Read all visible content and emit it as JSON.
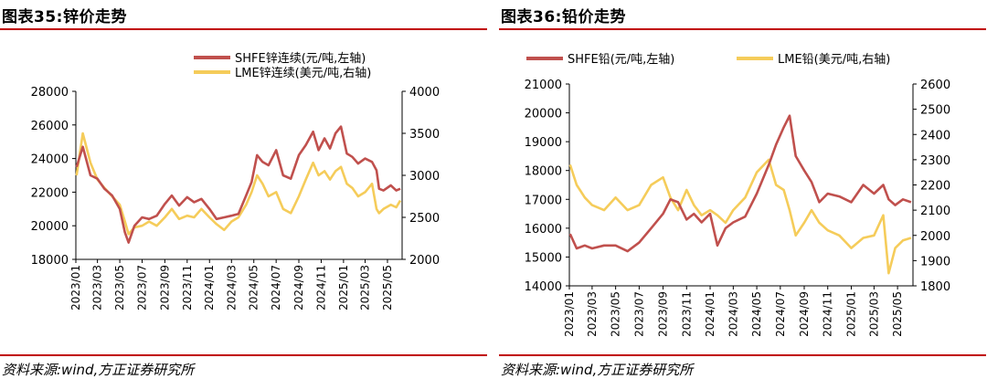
{
  "chart_data": [
    {
      "id": "zinc",
      "type": "line",
      "title": "图表35:锌价走势",
      "source": "资料来源:wind,方正证券研究所",
      "x_ticks": [
        "2023/01",
        "2023/03",
        "2023/05",
        "2023/07",
        "2023/09",
        "2023/11",
        "2024/01",
        "2024/03",
        "2024/05",
        "2024/07",
        "2024/09",
        "2024/11",
        "2025/01",
        "2025/03",
        "2025/05"
      ],
      "x_range": [
        "2023/01/01",
        "2025/06/10"
      ],
      "y_left": {
        "ticks": [
          "18000",
          "20000",
          "22000",
          "24000",
          "26000",
          "28000"
        ],
        "range": [
          18000,
          28000
        ]
      },
      "y_right": {
        "ticks": [
          "2000",
          "2500",
          "3000",
          "3500",
          "4000"
        ],
        "range": [
          2000,
          4000
        ]
      },
      "legend_position": "top",
      "series": [
        {
          "name": "SHFE锌连续(元/吨,左轴)",
          "axis": "left",
          "color": "#c0504d",
          "x": [
            "2023/01/03",
            "2023/01/20",
            "2023/02/10",
            "2023/03/01",
            "2023/03/20",
            "2023/04/10",
            "2023/05/01",
            "2023/05/15",
            "2023/05/25",
            "2023/06/10",
            "2023/07/01",
            "2023/07/20",
            "2023/08/10",
            "2023/09/01",
            "2023/09/20",
            "2023/10/10",
            "2023/11/01",
            "2023/11/20",
            "2023/12/10",
            "2024/01/01",
            "2024/01/20",
            "2024/02/10",
            "2024/03/01",
            "2024/03/20",
            "2024/04/10",
            "2024/04/25",
            "2024/05/10",
            "2024/05/25",
            "2024/06/10",
            "2024/07/01",
            "2024/07/20",
            "2024/08/10",
            "2024/09/01",
            "2024/09/20",
            "2024/10/10",
            "2024/10/25",
            "2024/11/10",
            "2024/11/25",
            "2024/12/10",
            "2024/12/25",
            "2025/01/10",
            "2025/01/25",
            "2025/02/10",
            "2025/03/01",
            "2025/03/20",
            "2025/04/01",
            "2025/04/08",
            "2025/04/20",
            "2025/05/10",
            "2025/05/25",
            "2025/06/05"
          ],
          "values": [
            23500,
            24700,
            23000,
            22800,
            22200,
            21800,
            21000,
            19600,
            19000,
            20000,
            20500,
            20400,
            20600,
            21300,
            21800,
            21200,
            21700,
            21400,
            21600,
            21000,
            20400,
            20500,
            20600,
            20700,
            21800,
            22600,
            24200,
            23800,
            23600,
            24500,
            23000,
            22800,
            24200,
            24800,
            25600,
            24500,
            25200,
            24600,
            25500,
            25900,
            24300,
            24100,
            23700,
            24000,
            23800,
            23300,
            22200,
            22100,
            22400,
            22100,
            22200
          ]
        },
        {
          "name": "LME锌连续(美元/吨,右轴)",
          "axis": "right",
          "color": "#f5cc5a",
          "x": [
            "2023/01/03",
            "2023/01/20",
            "2023/02/10",
            "2023/03/01",
            "2023/03/20",
            "2023/04/10",
            "2023/05/01",
            "2023/05/15",
            "2023/05/25",
            "2023/06/10",
            "2023/07/01",
            "2023/07/20",
            "2023/08/10",
            "2023/09/01",
            "2023/09/20",
            "2023/10/10",
            "2023/11/01",
            "2023/11/20",
            "2023/12/10",
            "2024/01/01",
            "2024/01/20",
            "2024/02/10",
            "2024/03/01",
            "2024/03/20",
            "2024/04/10",
            "2024/04/25",
            "2024/05/10",
            "2024/05/25",
            "2024/06/10",
            "2024/07/01",
            "2024/07/20",
            "2024/08/10",
            "2024/09/01",
            "2024/09/20",
            "2024/10/10",
            "2024/10/25",
            "2024/11/10",
            "2024/11/25",
            "2024/12/10",
            "2024/12/25",
            "2025/01/10",
            "2025/01/25",
            "2025/02/10",
            "2025/03/01",
            "2025/03/20",
            "2025/04/01",
            "2025/04/08",
            "2025/04/20",
            "2025/05/10",
            "2025/05/25",
            "2025/06/05"
          ],
          "values": [
            3000,
            3500,
            3150,
            2950,
            2850,
            2750,
            2650,
            2450,
            2300,
            2380,
            2400,
            2450,
            2400,
            2500,
            2600,
            2480,
            2520,
            2500,
            2600,
            2500,
            2420,
            2350,
            2450,
            2500,
            2650,
            2800,
            3000,
            2900,
            2750,
            2800,
            2600,
            2550,
            2750,
            2950,
            3150,
            3000,
            3050,
            2950,
            3050,
            3100,
            2900,
            2850,
            2750,
            2800,
            2900,
            2600,
            2550,
            2600,
            2650,
            2620,
            2700
          ]
        }
      ]
    },
    {
      "id": "lead",
      "type": "line",
      "title": "图表36:铅价走势",
      "source": "资料来源:wind,方正证券研究所",
      "x_ticks": [
        "2023/01",
        "2023/03",
        "2023/05",
        "2023/07",
        "2023/09",
        "2023/11",
        "2024/01",
        "2024/03",
        "2024/05",
        "2024/07",
        "2024/09",
        "2024/11",
        "2025/01",
        "2025/03",
        "2025/05"
      ],
      "x_range": [
        "2023/01/01",
        "2025/06/10"
      ],
      "y_left": {
        "ticks": [
          "14000",
          "15000",
          "16000",
          "17000",
          "18000",
          "19000",
          "20000",
          "21000"
        ],
        "range": [
          14000,
          21000
        ]
      },
      "y_right": {
        "ticks": [
          "1800",
          "1900",
          "2000",
          "2100",
          "2200",
          "2300",
          "2400",
          "2500",
          "2600"
        ],
        "range": [
          1800,
          2600
        ]
      },
      "legend_position": "top",
      "series": [
        {
          "name": "SHFE铅(元/吨,左轴)",
          "axis": "left",
          "color": "#c0504d",
          "x": [
            "2023/01/03",
            "2023/01/20",
            "2023/02/10",
            "2023/03/01",
            "2023/04/01",
            "2023/05/01",
            "2023/06/01",
            "2023/07/01",
            "2023/08/01",
            "2023/09/01",
            "2023/09/20",
            "2023/10/10",
            "2023/11/01",
            "2023/11/20",
            "2023/12/10",
            "2024/01/01",
            "2024/01/20",
            "2024/02/10",
            "2024/03/01",
            "2024/04/01",
            "2024/05/01",
            "2024/06/01",
            "2024/06/20",
            "2024/07/10",
            "2024/07/25",
            "2024/08/10",
            "2024/09/01",
            "2024/09/20",
            "2024/10/10",
            "2024/11/01",
            "2024/12/01",
            "2025/01/01",
            "2025/02/01",
            "2025/03/01",
            "2025/03/25",
            "2025/04/08",
            "2025/04/25",
            "2025/05/15",
            "2025/06/05"
          ],
          "values": [
            15800,
            15300,
            15400,
            15300,
            15400,
            15400,
            15200,
            15500,
            16000,
            16500,
            17000,
            16900,
            16300,
            16500,
            16200,
            16500,
            15400,
            16000,
            16200,
            16400,
            17200,
            18200,
            18900,
            19500,
            19900,
            18500,
            18000,
            17600,
            16900,
            17200,
            17100,
            16900,
            17500,
            17200,
            17500,
            17000,
            16800,
            17000,
            16900
          ]
        },
        {
          "name": "LME铅(美元/吨,右轴)",
          "axis": "right",
          "color": "#f5cc5a",
          "x": [
            "2023/01/03",
            "2023/01/20",
            "2023/02/10",
            "2023/03/01",
            "2023/04/01",
            "2023/05/01",
            "2023/06/01",
            "2023/07/01",
            "2023/08/01",
            "2023/09/01",
            "2023/09/20",
            "2023/10/10",
            "2023/11/01",
            "2023/11/20",
            "2023/12/10",
            "2024/01/01",
            "2024/01/20",
            "2024/02/10",
            "2024/03/01",
            "2024/04/01",
            "2024/05/01",
            "2024/06/01",
            "2024/06/20",
            "2024/07/10",
            "2024/07/25",
            "2024/08/10",
            "2024/09/01",
            "2024/09/20",
            "2024/10/10",
            "2024/11/01",
            "2024/12/01",
            "2025/01/01",
            "2025/02/01",
            "2025/03/01",
            "2025/03/25",
            "2025/04/08",
            "2025/04/25",
            "2025/05/15",
            "2025/06/05"
          ],
          "values": [
            2280,
            2200,
            2150,
            2120,
            2100,
            2150,
            2100,
            2120,
            2200,
            2230,
            2150,
            2100,
            2180,
            2120,
            2080,
            2100,
            2080,
            2050,
            2100,
            2150,
            2250,
            2300,
            2200,
            2180,
            2100,
            2000,
            2050,
            2100,
            2050,
            2020,
            2000,
            1950,
            1990,
            2000,
            2080,
            1850,
            1950,
            1980,
            1990
          ]
        }
      ]
    }
  ]
}
